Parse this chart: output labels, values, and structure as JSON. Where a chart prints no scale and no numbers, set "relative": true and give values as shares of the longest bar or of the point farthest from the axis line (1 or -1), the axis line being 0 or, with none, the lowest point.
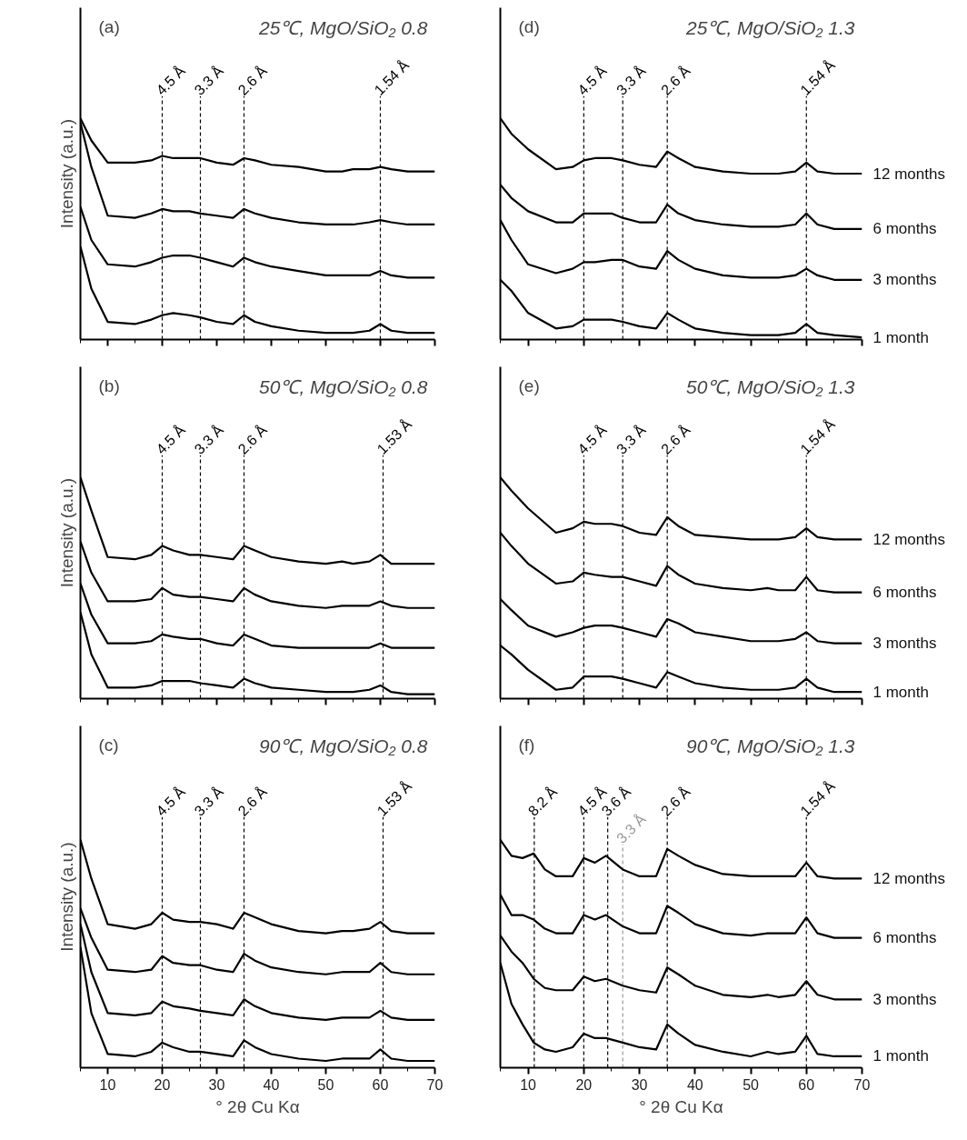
{
  "chart_data": [
    {
      "type": "line",
      "title": "(a)",
      "subtitle": "25℃, MgO/SiO₂ 0.8",
      "ylabel": "Intensity (a.u.)",
      "relative": true,
      "xlim": [
        5,
        70
      ],
      "xticks": [
        10,
        20,
        30,
        40,
        50,
        60,
        70
      ],
      "tick_labels": false,
      "line_style": "solid",
      "x": [
        5,
        7,
        10,
        15,
        18,
        20,
        22,
        25,
        27,
        30,
        33,
        35,
        37,
        40,
        45,
        50,
        53,
        55,
        58,
        60,
        62,
        65,
        70
      ],
      "ref_lines": [
        {
          "axis": "x",
          "value": 20,
          "label": "4.5 Å",
          "line_style": "dashed",
          "color": "#000000"
        },
        {
          "axis": "x",
          "value": 27,
          "label": "3.3 Å",
          "line_style": "dashed",
          "color": "#000000"
        },
        {
          "axis": "x",
          "value": 35,
          "label": "2.6 Å",
          "line_style": "dashed",
          "color": "#000000"
        },
        {
          "axis": "x",
          "value": 60,
          "label": "1.54 Å",
          "line_style": "dashed",
          "color": "#000000"
        }
      ],
      "series": [
        {
          "color": "#000000",
          "values": [
            1.0,
            0.9,
            0.8,
            0.8,
            0.81,
            0.83,
            0.82,
            0.82,
            0.82,
            0.8,
            0.79,
            0.82,
            0.81,
            0.79,
            0.78,
            0.76,
            0.76,
            0.77,
            0.77,
            0.78,
            0.77,
            0.76,
            0.76
          ]
        },
        {
          "color": "#000000",
          "values": [
            0.98,
            0.78,
            0.56,
            0.55,
            0.57,
            0.59,
            0.58,
            0.58,
            0.57,
            0.56,
            0.55,
            0.59,
            0.57,
            0.55,
            0.53,
            0.52,
            0.52,
            0.52,
            0.53,
            0.54,
            0.53,
            0.52,
            0.52
          ]
        },
        {
          "color": "#000000",
          "values": [
            0.6,
            0.45,
            0.34,
            0.33,
            0.35,
            0.37,
            0.38,
            0.38,
            0.37,
            0.35,
            0.33,
            0.37,
            0.35,
            0.33,
            0.31,
            0.29,
            0.29,
            0.29,
            0.29,
            0.31,
            0.29,
            0.28,
            0.28
          ]
        },
        {
          "color": "#000000",
          "values": [
            0.42,
            0.23,
            0.08,
            0.07,
            0.09,
            0.11,
            0.12,
            0.11,
            0.1,
            0.08,
            0.07,
            0.11,
            0.08,
            0.06,
            0.04,
            0.03,
            0.03,
            0.03,
            0.04,
            0.07,
            0.04,
            0.03,
            0.03
          ]
        }
      ]
    },
    {
      "type": "line",
      "title": "(d)",
      "subtitle": "25℃, MgO/SiO₂ 1.3",
      "relative": true,
      "xlim": [
        5,
        70
      ],
      "xticks": [
        10,
        20,
        30,
        40,
        50,
        60,
        70
      ],
      "tick_labels": false,
      "line_style": "solid",
      "x": [
        5,
        7,
        10,
        15,
        18,
        20,
        22,
        25,
        27,
        30,
        33,
        35,
        37,
        40,
        45,
        50,
        53,
        55,
        58,
        60,
        62,
        65,
        70
      ],
      "ref_lines": [
        {
          "axis": "x",
          "value": 20,
          "label": "4.5 Å",
          "line_style": "dashed",
          "color": "#000000"
        },
        {
          "axis": "x",
          "value": 27,
          "label": "3.3 Å",
          "line_style": "dashed",
          "color": "#000000"
        },
        {
          "axis": "x",
          "value": 35,
          "label": "2.6 Å",
          "line_style": "dashed",
          "color": "#000000"
        },
        {
          "axis": "x",
          "value": 60,
          "label": "1.54 Å",
          "line_style": "dashed",
          "color": "#000000"
        }
      ],
      "series": [
        {
          "name": "12 months",
          "color": "#000000",
          "values": [
            1.0,
            0.93,
            0.86,
            0.77,
            0.78,
            0.81,
            0.82,
            0.82,
            0.81,
            0.79,
            0.78,
            0.85,
            0.82,
            0.78,
            0.76,
            0.75,
            0.75,
            0.75,
            0.76,
            0.8,
            0.76,
            0.75,
            0.75
          ]
        },
        {
          "name": "6 months",
          "color": "#000000",
          "values": [
            0.7,
            0.64,
            0.58,
            0.53,
            0.53,
            0.57,
            0.57,
            0.57,
            0.55,
            0.53,
            0.53,
            0.61,
            0.57,
            0.54,
            0.52,
            0.51,
            0.51,
            0.51,
            0.52,
            0.57,
            0.52,
            0.5,
            0.5
          ]
        },
        {
          "name": "3 months",
          "color": "#000000",
          "values": [
            0.54,
            0.45,
            0.34,
            0.3,
            0.32,
            0.35,
            0.35,
            0.36,
            0.36,
            0.33,
            0.32,
            0.4,
            0.36,
            0.32,
            0.29,
            0.28,
            0.28,
            0.28,
            0.29,
            0.32,
            0.29,
            0.27,
            0.27
          ]
        },
        {
          "name": "1 month",
          "color": "#000000",
          "values": [
            0.27,
            0.22,
            0.12,
            0.05,
            0.06,
            0.09,
            0.09,
            0.09,
            0.08,
            0.06,
            0.05,
            0.12,
            0.09,
            0.05,
            0.03,
            0.02,
            0.02,
            0.02,
            0.03,
            0.07,
            0.03,
            0.02,
            0.01
          ]
        }
      ]
    },
    {
      "type": "line",
      "title": "(b)",
      "subtitle": "50℃, MgO/SiO₂ 0.8",
      "ylabel": "Intensity (a.u.)",
      "relative": true,
      "xlim": [
        5,
        70
      ],
      "xticks": [
        10,
        20,
        30,
        40,
        50,
        60,
        70
      ],
      "tick_labels": false,
      "line_style": "solid",
      "x": [
        5,
        7,
        10,
        15,
        18,
        20,
        22,
        25,
        27,
        30,
        33,
        35,
        37,
        40,
        45,
        50,
        53,
        55,
        58,
        60,
        62,
        65,
        70
      ],
      "ref_lines": [
        {
          "axis": "x",
          "value": 20,
          "label": "4.5 Å",
          "line_style": "dashed",
          "color": "#000000"
        },
        {
          "axis": "x",
          "value": 27,
          "label": "3.3 Å",
          "line_style": "dashed",
          "color": "#000000"
        },
        {
          "axis": "x",
          "value": 35,
          "label": "2.6 Å",
          "line_style": "dashed",
          "color": "#000000"
        },
        {
          "axis": "x",
          "value": 60.5,
          "label": "1.53 Å",
          "line_style": "dashed",
          "color": "#000000"
        }
      ],
      "series": [
        {
          "color": "#000000",
          "values": [
            1.0,
            0.85,
            0.64,
            0.63,
            0.65,
            0.69,
            0.67,
            0.65,
            0.65,
            0.64,
            0.63,
            0.69,
            0.67,
            0.64,
            0.62,
            0.61,
            0.62,
            0.61,
            0.62,
            0.65,
            0.61,
            0.61,
            0.61
          ]
        },
        {
          "color": "#000000",
          "values": [
            0.71,
            0.57,
            0.44,
            0.44,
            0.45,
            0.5,
            0.47,
            0.46,
            0.46,
            0.45,
            0.44,
            0.5,
            0.47,
            0.44,
            0.42,
            0.41,
            0.42,
            0.42,
            0.42,
            0.44,
            0.42,
            0.41,
            0.41
          ]
        },
        {
          "color": "#000000",
          "values": [
            0.52,
            0.38,
            0.25,
            0.25,
            0.26,
            0.29,
            0.28,
            0.27,
            0.27,
            0.25,
            0.24,
            0.29,
            0.27,
            0.24,
            0.23,
            0.23,
            0.23,
            0.23,
            0.23,
            0.25,
            0.23,
            0.23,
            0.23
          ]
        },
        {
          "color": "#000000",
          "values": [
            0.39,
            0.2,
            0.05,
            0.05,
            0.06,
            0.08,
            0.08,
            0.08,
            0.07,
            0.06,
            0.05,
            0.09,
            0.07,
            0.05,
            0.04,
            0.03,
            0.03,
            0.03,
            0.04,
            0.06,
            0.03,
            0.02,
            0.02
          ]
        }
      ]
    },
    {
      "type": "line",
      "title": "(e)",
      "subtitle": "50℃, MgO/SiO₂ 1.3",
      "relative": true,
      "xlim": [
        5,
        70
      ],
      "xticks": [
        10,
        20,
        30,
        40,
        50,
        60,
        70
      ],
      "tick_labels": false,
      "line_style": "solid",
      "x": [
        5,
        7,
        10,
        15,
        18,
        20,
        22,
        25,
        27,
        30,
        33,
        35,
        37,
        40,
        45,
        50,
        53,
        55,
        58,
        60,
        62,
        65,
        70
      ],
      "ref_lines": [
        {
          "axis": "x",
          "value": 20,
          "label": "4.5 Å",
          "line_style": "dashed",
          "color": "#000000"
        },
        {
          "axis": "x",
          "value": 27,
          "label": "3.3 Å",
          "line_style": "dashed",
          "color": "#000000"
        },
        {
          "axis": "x",
          "value": 35,
          "label": "2.6 Å",
          "line_style": "dashed",
          "color": "#000000"
        },
        {
          "axis": "x",
          "value": 60,
          "label": "1.54 Å",
          "line_style": "dashed",
          "color": "#000000"
        }
      ],
      "series": [
        {
          "name": "12 months",
          "color": "#000000",
          "values": [
            1.0,
            0.94,
            0.86,
            0.75,
            0.77,
            0.8,
            0.79,
            0.79,
            0.78,
            0.75,
            0.74,
            0.82,
            0.78,
            0.74,
            0.73,
            0.72,
            0.72,
            0.72,
            0.73,
            0.77,
            0.73,
            0.72,
            0.72
          ]
        },
        {
          "name": "6 months",
          "color": "#000000",
          "values": [
            0.75,
            0.69,
            0.61,
            0.52,
            0.53,
            0.57,
            0.56,
            0.55,
            0.55,
            0.53,
            0.51,
            0.6,
            0.56,
            0.52,
            0.5,
            0.49,
            0.5,
            0.49,
            0.49,
            0.55,
            0.49,
            0.48,
            0.48
          ]
        },
        {
          "name": "3 months",
          "color": "#000000",
          "values": [
            0.45,
            0.4,
            0.33,
            0.28,
            0.3,
            0.32,
            0.33,
            0.33,
            0.32,
            0.3,
            0.28,
            0.36,
            0.34,
            0.3,
            0.28,
            0.26,
            0.26,
            0.26,
            0.27,
            0.3,
            0.26,
            0.25,
            0.25
          ]
        },
        {
          "name": "1 month",
          "color": "#000000",
          "values": [
            0.24,
            0.2,
            0.13,
            0.04,
            0.05,
            0.1,
            0.1,
            0.1,
            0.09,
            0.07,
            0.05,
            0.12,
            0.1,
            0.07,
            0.05,
            0.04,
            0.04,
            0.04,
            0.05,
            0.09,
            0.05,
            0.03,
            0.03
          ]
        }
      ]
    },
    {
      "type": "line",
      "title": "(c)",
      "subtitle": "90℃, MgO/SiO₂ 0.8",
      "ylabel": "Intensity (a.u.)",
      "xlabel": "° 2θ Cu Kα",
      "relative": true,
      "xlim": [
        5,
        70
      ],
      "xticks": [
        10,
        20,
        30,
        40,
        50,
        60,
        70
      ],
      "tick_labels": "x",
      "line_style": "solid",
      "x": [
        5,
        7,
        10,
        15,
        18,
        20,
        22,
        25,
        27,
        30,
        33,
        35,
        37,
        40,
        45,
        50,
        53,
        55,
        58,
        60,
        62,
        65,
        70
      ],
      "ref_lines": [
        {
          "axis": "x",
          "value": 20,
          "label": "4.5 Å",
          "line_style": "dashed",
          "color": "#000000"
        },
        {
          "axis": "x",
          "value": 27,
          "label": "3.3 Å",
          "line_style": "dashed",
          "color": "#000000"
        },
        {
          "axis": "x",
          "value": 35,
          "label": "2.6 Å",
          "line_style": "dashed",
          "color": "#000000"
        },
        {
          "axis": "x",
          "value": 60.5,
          "label": "1.53 Å",
          "line_style": "dashed",
          "color": "#000000"
        }
      ],
      "series": [
        {
          "color": "#000000",
          "values": [
            1.0,
            0.83,
            0.63,
            0.61,
            0.63,
            0.68,
            0.65,
            0.64,
            0.64,
            0.63,
            0.61,
            0.68,
            0.66,
            0.63,
            0.6,
            0.59,
            0.6,
            0.6,
            0.61,
            0.64,
            0.6,
            0.59,
            0.59
          ]
        },
        {
          "color": "#000000",
          "values": [
            0.7,
            0.57,
            0.43,
            0.42,
            0.43,
            0.49,
            0.46,
            0.45,
            0.45,
            0.43,
            0.42,
            0.5,
            0.47,
            0.44,
            0.42,
            0.41,
            0.42,
            0.42,
            0.42,
            0.46,
            0.42,
            0.41,
            0.41
          ]
        },
        {
          "color": "#000000",
          "values": [
            0.63,
            0.42,
            0.24,
            0.23,
            0.24,
            0.29,
            0.27,
            0.26,
            0.25,
            0.24,
            0.23,
            0.3,
            0.27,
            0.24,
            0.22,
            0.21,
            0.22,
            0.22,
            0.22,
            0.25,
            0.22,
            0.21,
            0.21
          ]
        },
        {
          "color": "#000000",
          "values": [
            0.53,
            0.24,
            0.06,
            0.05,
            0.07,
            0.11,
            0.09,
            0.07,
            0.07,
            0.06,
            0.05,
            0.12,
            0.09,
            0.06,
            0.04,
            0.03,
            0.04,
            0.04,
            0.04,
            0.08,
            0.04,
            0.03,
            0.03
          ]
        }
      ]
    },
    {
      "type": "line",
      "title": "(f)",
      "subtitle": "90℃, MgO/SiO₂ 1.3",
      "xlabel": "° 2θ Cu Kα",
      "relative": true,
      "xlim": [
        5,
        70
      ],
      "xticks": [
        10,
        20,
        30,
        40,
        50,
        60,
        70
      ],
      "tick_labels": "x",
      "line_style": "solid",
      "x": [
        5,
        7,
        9,
        11,
        13,
        15,
        18,
        20,
        22,
        24,
        27,
        30,
        33,
        35,
        37,
        40,
        45,
        50,
        53,
        55,
        58,
        60,
        62,
        65,
        70
      ],
      "ref_lines": [
        {
          "axis": "x",
          "value": 11.1,
          "label": "8.2 Å",
          "line_style": "dashed",
          "color": "#000000"
        },
        {
          "axis": "x",
          "value": 20,
          "label": "4.5 Å",
          "line_style": "dashed",
          "color": "#000000"
        },
        {
          "axis": "x",
          "value": 24.3,
          "label": "3.6 Å",
          "line_style": "dashed",
          "color": "#000000"
        },
        {
          "axis": "x",
          "value": 27,
          "label": "3.3 Å",
          "line_style": "dashed",
          "color": "#999999"
        },
        {
          "axis": "x",
          "value": 35,
          "label": "2.6 Å",
          "line_style": "dashed",
          "color": "#000000"
        },
        {
          "axis": "x",
          "value": 60,
          "label": "1.54 Å",
          "line_style": "dashed",
          "color": "#000000"
        }
      ],
      "series": [
        {
          "name": "12 months",
          "color": "#000000",
          "values": [
            1.0,
            0.93,
            0.92,
            0.94,
            0.87,
            0.84,
            0.84,
            0.92,
            0.9,
            0.93,
            0.87,
            0.84,
            0.84,
            0.96,
            0.93,
            0.89,
            0.85,
            0.84,
            0.84,
            0.84,
            0.84,
            0.9,
            0.84,
            0.83,
            0.83
          ]
        },
        {
          "name": "6 months",
          "color": "#000000",
          "values": [
            0.76,
            0.67,
            0.67,
            0.65,
            0.61,
            0.59,
            0.59,
            0.67,
            0.65,
            0.67,
            0.62,
            0.59,
            0.59,
            0.71,
            0.68,
            0.63,
            0.59,
            0.58,
            0.59,
            0.59,
            0.59,
            0.66,
            0.59,
            0.57,
            0.57
          ]
        },
        {
          "name": "3 months",
          "color": "#000000",
          "values": [
            0.58,
            0.51,
            0.46,
            0.39,
            0.35,
            0.34,
            0.34,
            0.4,
            0.38,
            0.39,
            0.36,
            0.34,
            0.33,
            0.44,
            0.41,
            0.36,
            0.32,
            0.31,
            0.32,
            0.31,
            0.32,
            0.38,
            0.32,
            0.3,
            0.3
          ]
        },
        {
          "name": "1 month",
          "color": "#000000",
          "values": [
            0.46,
            0.28,
            0.19,
            0.11,
            0.08,
            0.07,
            0.09,
            0.15,
            0.13,
            0.13,
            0.11,
            0.09,
            0.08,
            0.19,
            0.15,
            0.1,
            0.07,
            0.05,
            0.07,
            0.06,
            0.07,
            0.14,
            0.06,
            0.05,
            0.05
          ]
        }
      ]
    }
  ]
}
